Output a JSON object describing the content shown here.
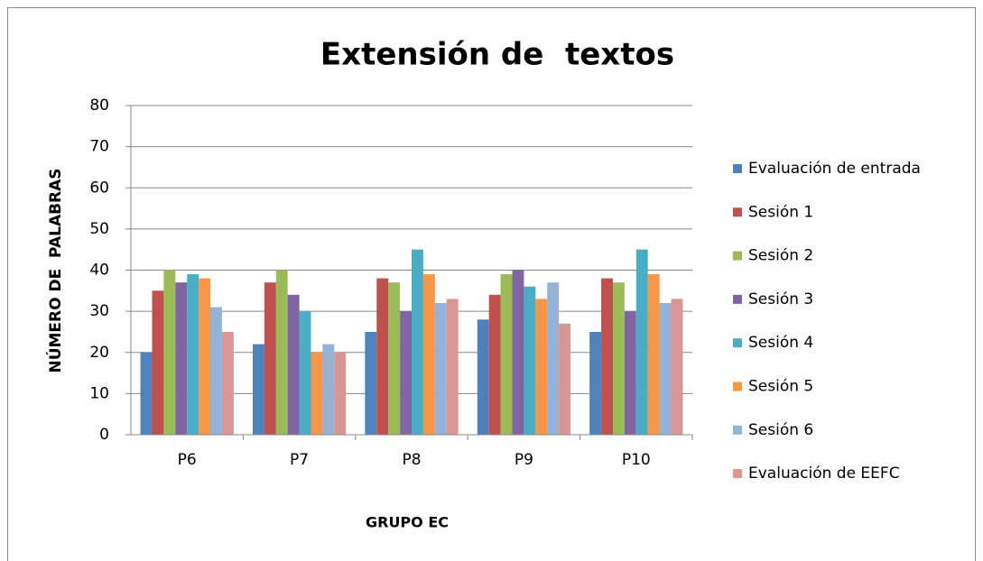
{
  "chart_data": {
    "type": "bar",
    "title": "Extensión de  textos",
    "xlabel": "GRUPO EC",
    "ylabel": "NÚMERO DE  PALABRAS",
    "categories": [
      "P6",
      "P7",
      "P8",
      "P9",
      "P10"
    ],
    "series": [
      {
        "name": "Evaluación de entrada",
        "color": "#4f81bd",
        "values": [
          20,
          22,
          25,
          28,
          25
        ]
      },
      {
        "name": "Sesión 1",
        "color": "#c0504d",
        "values": [
          35,
          37,
          38,
          34,
          38
        ]
      },
      {
        "name": "Sesión 2",
        "color": "#9bbb59",
        "values": [
          40,
          40,
          37,
          39,
          37
        ]
      },
      {
        "name": "Sesión 3",
        "color": "#8064a2",
        "values": [
          37,
          34,
          30,
          40,
          30
        ]
      },
      {
        "name": "Sesión 4",
        "color": "#4bacc6",
        "values": [
          39,
          30,
          45,
          36,
          45
        ]
      },
      {
        "name": "Sesión 5",
        "color": "#f79646",
        "values": [
          38,
          20,
          39,
          33,
          39
        ]
      },
      {
        "name": "Sesión 6",
        "color": "#95b3d7",
        "values": [
          31,
          22,
          32,
          37,
          32
        ]
      },
      {
        "name": "Evaluación de EEFC",
        "color": "#d99694",
        "values": [
          25,
          20,
          33,
          27,
          33
        ]
      }
    ],
    "ylim": [
      0,
      80
    ],
    "yticks": [
      0,
      10,
      20,
      30,
      40,
      50,
      60,
      70,
      80
    ],
    "grid": true,
    "legend": "right"
  }
}
